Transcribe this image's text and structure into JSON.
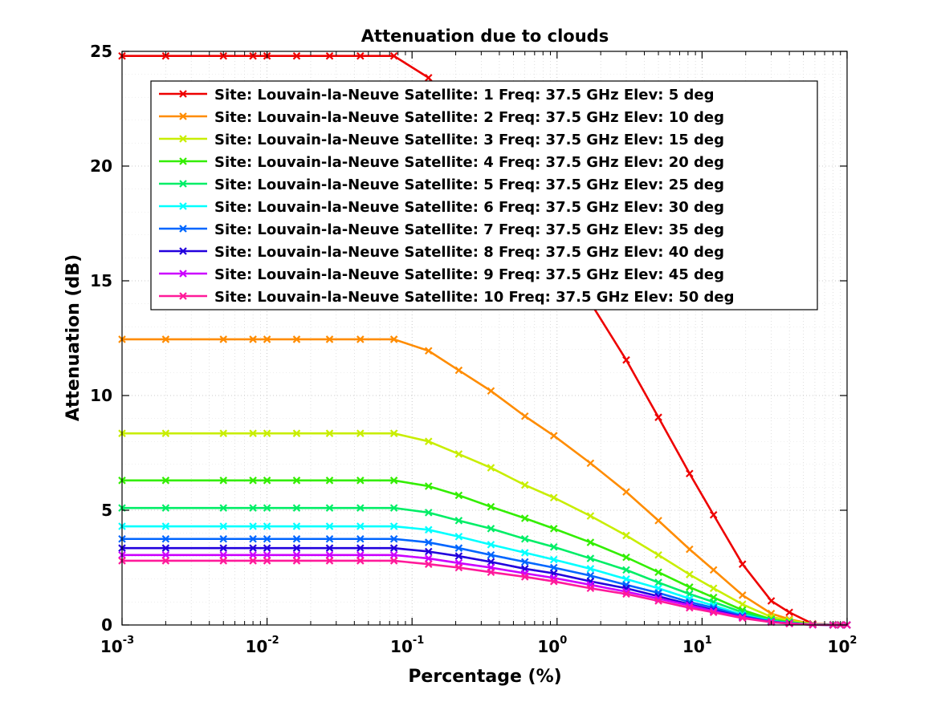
{
  "chart_data": {
    "type": "line",
    "title": "Attenuation due to clouds",
    "xlabel": "Percentage (%)",
    "ylabel": "Attenuation (dB)",
    "xscale": "log",
    "xlim": [
      0.001,
      100
    ],
    "ylim": [
      0,
      25
    ],
    "grid": true,
    "legend_position": "top-right",
    "x_tick_labels": [
      {
        "base": "10",
        "exp": "-3"
      },
      {
        "base": "10",
        "exp": "-2"
      },
      {
        "base": "10",
        "exp": "-1"
      },
      {
        "base": "10",
        "exp": "0"
      },
      {
        "base": "10",
        "exp": "1"
      },
      {
        "base": "10",
        "exp": "2"
      }
    ],
    "y_tick_labels": [
      "0",
      "5",
      "10",
      "15",
      "20",
      "25"
    ],
    "marker": "x",
    "x": [
      0.001,
      0.002,
      0.005,
      0.008,
      0.01,
      0.016,
      0.027,
      0.044,
      0.075,
      0.13,
      0.21,
      0.35,
      0.6,
      0.95,
      1.7,
      3.0,
      5.0,
      8.2,
      12.0,
      19.0,
      30.0,
      40.0,
      58.0,
      80.0,
      90.0,
      100.0
    ],
    "series": [
      {
        "name": "Site: Louvain-la-Neuve Satellite: 1 Freq: 37.5 GHz Elev: 5 deg",
        "color": "#ee0000",
        "values": [
          24.8,
          24.8,
          24.8,
          24.8,
          24.8,
          24.8,
          24.8,
          24.8,
          24.8,
          23.85,
          22.1,
          20.3,
          18.2,
          16.45,
          14.05,
          11.55,
          9.05,
          6.6,
          4.8,
          2.65,
          1.05,
          0.55,
          0.05,
          0.02,
          0.01,
          0.0
        ]
      },
      {
        "name": "Site: Louvain-la-Neuve Satellite: 2 Freq: 37.5 GHz Elev: 10 deg",
        "color": "#ff8c00",
        "values": [
          12.45,
          12.45,
          12.45,
          12.45,
          12.45,
          12.45,
          12.45,
          12.45,
          12.45,
          11.95,
          11.1,
          10.2,
          9.1,
          8.25,
          7.05,
          5.8,
          4.55,
          3.3,
          2.4,
          1.3,
          0.5,
          0.25,
          0.04,
          0.02,
          0.01,
          0.0
        ]
      },
      {
        "name": "Site: Louvain-la-Neuve Satellite: 3 Freq: 37.5 GHz Elev: 15 deg",
        "color": "#c8ee00",
        "values": [
          8.35,
          8.35,
          8.35,
          8.35,
          8.35,
          8.35,
          8.35,
          8.35,
          8.35,
          8.0,
          7.45,
          6.85,
          6.1,
          5.55,
          4.75,
          3.9,
          3.05,
          2.2,
          1.6,
          0.9,
          0.35,
          0.2,
          0.03,
          0.01,
          0.01,
          0.0
        ]
      },
      {
        "name": "Site: Louvain-la-Neuve Satellite: 4 Freq: 37.5 GHz Elev: 20 deg",
        "color": "#33ee00",
        "values": [
          6.3,
          6.3,
          6.3,
          6.3,
          6.3,
          6.3,
          6.3,
          6.3,
          6.3,
          6.05,
          5.65,
          5.15,
          4.65,
          4.2,
          3.6,
          2.95,
          2.3,
          1.65,
          1.2,
          0.65,
          0.25,
          0.13,
          0.02,
          0.01,
          0.0,
          0.0
        ]
      },
      {
        "name": "Site: Louvain-la-Neuve Satellite: 5 Freq: 37.5 GHz Elev: 25 deg",
        "color": "#00ee66",
        "values": [
          5.1,
          5.1,
          5.1,
          5.1,
          5.1,
          5.1,
          5.1,
          5.1,
          5.1,
          4.9,
          4.55,
          4.2,
          3.75,
          3.4,
          2.9,
          2.4,
          1.85,
          1.35,
          1.0,
          0.55,
          0.2,
          0.1,
          0.02,
          0.01,
          0.0,
          0.0
        ]
      },
      {
        "name": "Site: Louvain-la-Neuve Satellite: 6 Freq: 37.5 GHz Elev: 30 deg",
        "color": "#00ffff",
        "values": [
          4.3,
          4.3,
          4.3,
          4.3,
          4.3,
          4.3,
          4.3,
          4.3,
          4.3,
          4.15,
          3.85,
          3.5,
          3.15,
          2.85,
          2.45,
          2.0,
          1.6,
          1.15,
          0.85,
          0.45,
          0.17,
          0.09,
          0.02,
          0.01,
          0.0,
          0.0
        ]
      },
      {
        "name": "Site: Louvain-la-Neuve Satellite: 7 Freq: 37.5 GHz Elev: 35 deg",
        "color": "#0066ff",
        "values": [
          3.75,
          3.75,
          3.75,
          3.75,
          3.75,
          3.75,
          3.75,
          3.75,
          3.75,
          3.6,
          3.35,
          3.05,
          2.75,
          2.5,
          2.15,
          1.75,
          1.4,
          1.0,
          0.75,
          0.4,
          0.15,
          0.08,
          0.01,
          0.0,
          0.0,
          0.0
        ]
      },
      {
        "name": "Site: Louvain-la-Neuve Satellite: 8 Freq: 37.5 GHz Elev: 40 deg",
        "color": "#2200dd",
        "values": [
          3.35,
          3.35,
          3.35,
          3.35,
          3.35,
          3.35,
          3.35,
          3.35,
          3.35,
          3.2,
          3.0,
          2.75,
          2.45,
          2.25,
          1.9,
          1.6,
          1.25,
          0.9,
          0.65,
          0.35,
          0.14,
          0.07,
          0.01,
          0.0,
          0.0,
          0.0
        ]
      },
      {
        "name": "Site: Louvain-la-Neuve Satellite: 9 Freq: 37.5 GHz Elev: 45 deg",
        "color": "#cc00ff",
        "values": [
          3.05,
          3.05,
          3.05,
          3.05,
          3.05,
          3.05,
          3.05,
          3.05,
          3.05,
          2.9,
          2.7,
          2.5,
          2.25,
          2.05,
          1.75,
          1.45,
          1.15,
          0.85,
          0.6,
          0.33,
          0.13,
          0.06,
          0.01,
          0.0,
          0.0,
          0.0
        ]
      },
      {
        "name": "Site: Louvain-la-Neuve Satellite: 10 Freq: 37.5 GHz Elev: 50 deg",
        "color": "#ff1a9a",
        "values": [
          2.8,
          2.8,
          2.8,
          2.8,
          2.8,
          2.8,
          2.8,
          2.8,
          2.8,
          2.65,
          2.5,
          2.3,
          2.1,
          1.9,
          1.6,
          1.35,
          1.05,
          0.75,
          0.55,
          0.3,
          0.12,
          0.06,
          0.01,
          0.0,
          0.0,
          0.0
        ]
      }
    ]
  }
}
